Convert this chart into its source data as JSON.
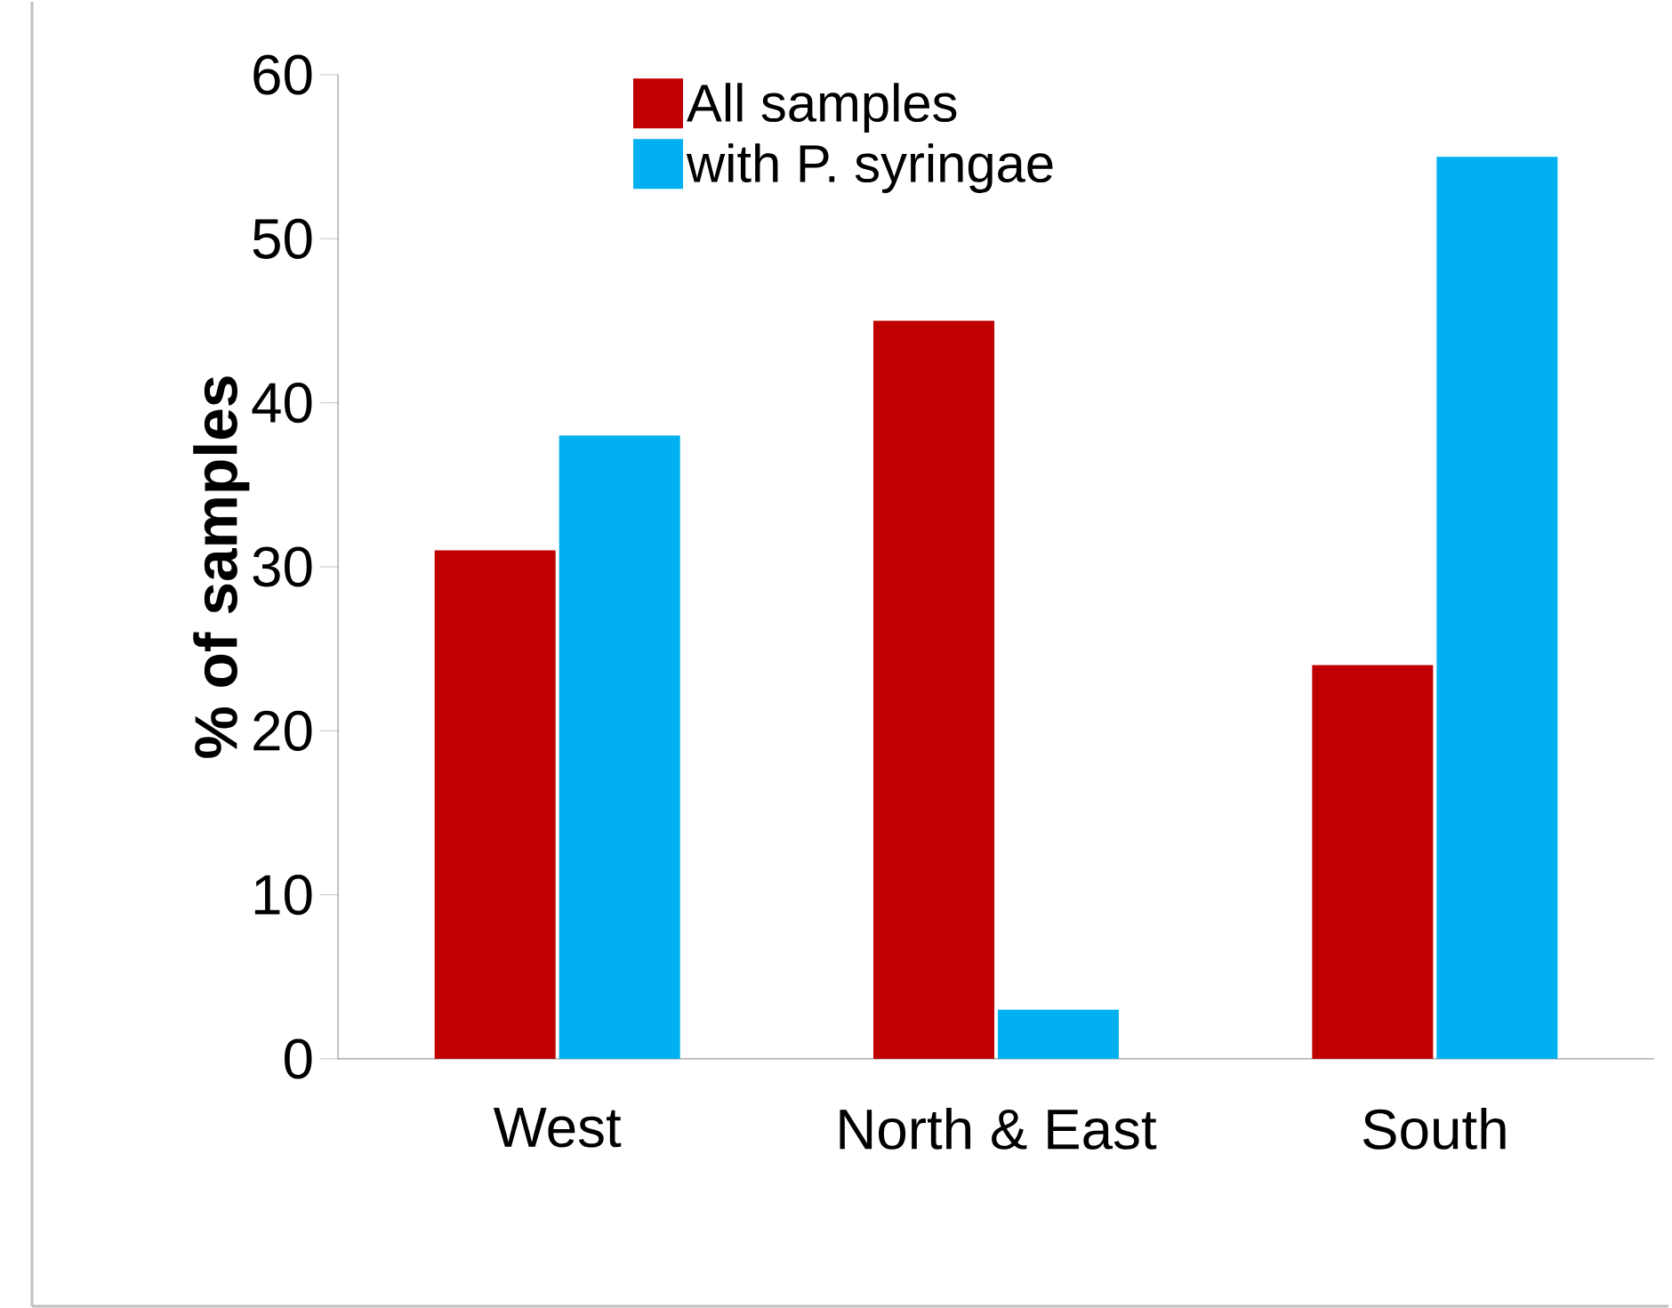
{
  "chart_data": {
    "type": "bar",
    "ylabel": "% of  samples",
    "categories": [
      "West",
      "North & East",
      "South"
    ],
    "series": [
      {
        "name": "All samples",
        "color": "#c00000",
        "values": [
          31,
          45,
          24
        ]
      },
      {
        "name": "with P. syringae",
        "color": "#00b0f0",
        "values": [
          38,
          3,
          55
        ]
      }
    ],
    "ylim": [
      0,
      60
    ],
    "yticks": [
      0,
      10,
      20,
      30,
      40,
      50,
      60
    ],
    "grid": false,
    "legend": "top"
  }
}
